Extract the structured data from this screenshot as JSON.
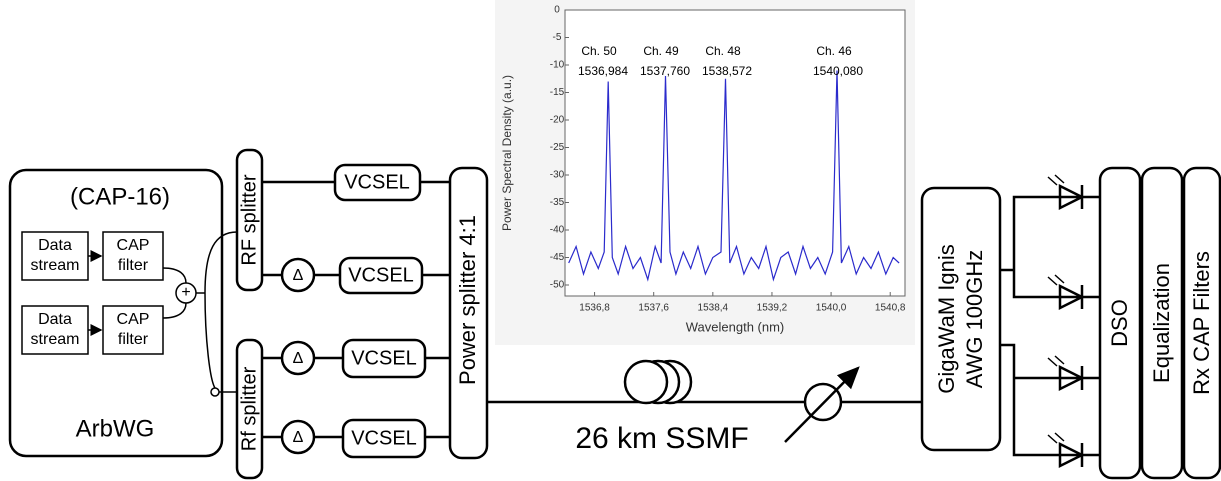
{
  "transmitter": {
    "format": "(CAP-16)",
    "name": "ArbWG",
    "blocks": [
      {
        "lines": [
          "Data",
          "stream"
        ]
      },
      {
        "lines": [
          "CAP",
          "filter"
        ]
      },
      {
        "lines": [
          "Data",
          "stream"
        ]
      },
      {
        "lines": [
          "CAP",
          "filter"
        ]
      }
    ],
    "adder": "+"
  },
  "splitters": [
    "RF splitter",
    "Rf splitter"
  ],
  "delays": [
    "Δ",
    "Δ",
    "Δ"
  ],
  "lasers": [
    "VCSEL",
    "VCSEL",
    "VCSEL",
    "VCSEL"
  ],
  "combiner": "Power splitter 4:1",
  "fiber": "26 km SSMF",
  "demux": [
    "GigaWaM Ignis",
    "AWG 100GHz"
  ],
  "receiver": [
    "DSO",
    "Equalization",
    "Rx CAP Filters"
  ],
  "chart_data": {
    "type": "line",
    "x_label": "Wavelength (nm)",
    "y_label": "Power Spectral Density (a.u.)",
    "x": [
      1536.45,
      1536.55,
      1536.65,
      1536.75,
      1536.85,
      1536.93,
      1536.984,
      1537.04,
      1537.12,
      1537.22,
      1537.32,
      1537.42,
      1537.52,
      1537.62,
      1537.7,
      1537.76,
      1537.82,
      1537.9,
      1538.0,
      1538.1,
      1538.2,
      1538.3,
      1538.4,
      1538.51,
      1538.572,
      1538.63,
      1538.72,
      1538.82,
      1538.92,
      1539.02,
      1539.12,
      1539.22,
      1539.32,
      1539.42,
      1539.52,
      1539.62,
      1539.72,
      1539.82,
      1539.92,
      1540.02,
      1540.08,
      1540.14,
      1540.24,
      1540.34,
      1540.44,
      1540.54,
      1540.64,
      1540.74,
      1540.84,
      1540.92
    ],
    "series": [
      {
        "name": "PSD",
        "color": "#2b2bcc",
        "values": [
          -46,
          -43,
          -48,
          -44,
          -47,
          -44,
          -13,
          -45,
          -48,
          -43,
          -47,
          -45,
          -49,
          -43,
          -46,
          -12,
          -44,
          -48,
          -44,
          -47,
          -43,
          -48,
          -45,
          -44,
          -12.5,
          -46,
          -43,
          -48,
          -45,
          -47,
          -43,
          -49,
          -45,
          -44,
          -48,
          -43,
          -47,
          -45,
          -48,
          -44,
          -11,
          -46,
          -43,
          -48,
          -45,
          -47,
          -44,
          -48,
          -45,
          -46
        ]
      }
    ],
    "xlim": [
      1536.4,
      1541.0
    ],
    "ylim": [
      -52,
      0
    ],
    "xticks": [
      {
        "value": 1536.8,
        "label": "1536,8"
      },
      {
        "value": 1537.6,
        "label": "1537,6"
      },
      {
        "value": 1538.4,
        "label": "1538,4"
      },
      {
        "value": 1539.2,
        "label": "1539,2"
      },
      {
        "value": 1540.0,
        "label": "1540,0"
      },
      {
        "value": 1540.8,
        "label": "1540,8"
      }
    ],
    "yticks": [
      0,
      -5,
      -10,
      -15,
      -20,
      -25,
      -30,
      -35,
      -40,
      -45,
      -50
    ],
    "annotations": [
      {
        "channel": "Ch. 50",
        "wavelength": "1536,984"
      },
      {
        "channel": "Ch. 49",
        "wavelength": "1537,760"
      },
      {
        "channel": "Ch. 48",
        "wavelength": "1538,572"
      },
      {
        "channel": "Ch. 46",
        "wavelength": "1540,080"
      }
    ]
  }
}
